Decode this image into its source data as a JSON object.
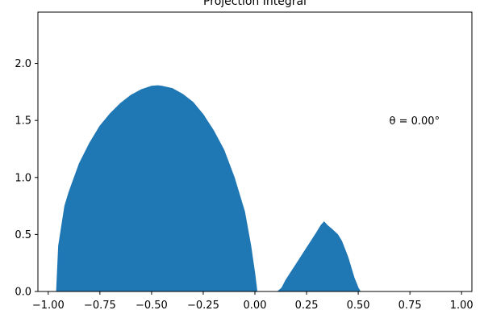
{
  "chart_data": {
    "type": "area",
    "title": "Projection Integral",
    "xlabel": "",
    "ylabel": "",
    "xlim": [
      -1.05,
      1.05
    ],
    "ylim": [
      0,
      2.45
    ],
    "grid": false,
    "x_ticks": [
      -1.0,
      -0.75,
      -0.5,
      -0.25,
      0.0,
      0.25,
      0.5,
      0.75,
      1.0
    ],
    "x_tick_labels": [
      "−1.00",
      "−0.75",
      "−0.50",
      "−0.25",
      "0.00",
      "0.25",
      "0.50",
      "0.75",
      "1.00"
    ],
    "y_ticks": [
      0.0,
      0.5,
      1.0,
      1.5,
      2.0
    ],
    "y_tick_labels": [
      "0.0",
      "0.5",
      "1.0",
      "1.5",
      "2.0"
    ],
    "annotation": {
      "text": "θ = 0.00°",
      "x": 0.65,
      "y": 1.5
    },
    "series": [
      {
        "color": "#1f77b4",
        "points": [
          [
            -1.0,
            0.0
          ],
          [
            -0.96,
            0.0
          ],
          [
            -0.95,
            0.4
          ],
          [
            -0.92,
            0.75
          ],
          [
            -0.9,
            0.87
          ],
          [
            -0.85,
            1.12
          ],
          [
            -0.8,
            1.3
          ],
          [
            -0.75,
            1.45
          ],
          [
            -0.7,
            1.56
          ],
          [
            -0.65,
            1.65
          ],
          [
            -0.6,
            1.72
          ],
          [
            -0.55,
            1.77
          ],
          [
            -0.5,
            1.8
          ],
          [
            -0.47,
            1.805
          ],
          [
            -0.45,
            1.8
          ],
          [
            -0.4,
            1.78
          ],
          [
            -0.35,
            1.73
          ],
          [
            -0.3,
            1.66
          ],
          [
            -0.25,
            1.55
          ],
          [
            -0.2,
            1.41
          ],
          [
            -0.15,
            1.24
          ],
          [
            -0.1,
            1.0
          ],
          [
            -0.05,
            0.7
          ],
          [
            -0.02,
            0.4
          ],
          [
            0.0,
            0.15
          ],
          [
            0.01,
            0.0
          ],
          [
            0.11,
            0.0
          ],
          [
            0.13,
            0.03
          ],
          [
            0.15,
            0.1
          ],
          [
            0.2,
            0.24
          ],
          [
            0.25,
            0.38
          ],
          [
            0.3,
            0.52
          ],
          [
            0.32,
            0.58
          ],
          [
            0.335,
            0.61
          ],
          [
            0.35,
            0.58
          ],
          [
            0.37,
            0.55
          ],
          [
            0.4,
            0.5
          ],
          [
            0.42,
            0.44
          ],
          [
            0.45,
            0.3
          ],
          [
            0.48,
            0.12
          ],
          [
            0.5,
            0.03
          ],
          [
            0.51,
            0.0
          ],
          [
            1.0,
            0.0
          ]
        ]
      }
    ]
  }
}
